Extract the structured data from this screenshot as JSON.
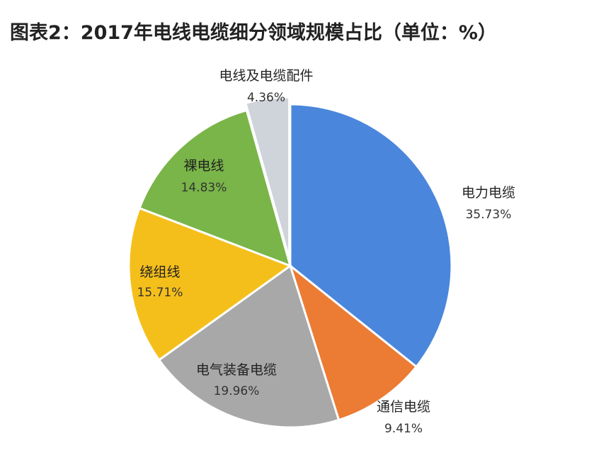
{
  "title": "图表2：2017年电线电缆细分领域规模占比（单位：%）",
  "chart_data": {
    "type": "pie",
    "title": "图表2：2017年电线电缆细分领域规模占比（单位：%）",
    "unit": "%",
    "slices": [
      {
        "label": "电力电缆",
        "value": 35.73,
        "value_text": "35.73%",
        "color": "#4A86DC"
      },
      {
        "label": "通信电缆",
        "value": 9.41,
        "value_text": "9.41%",
        "color": "#EC7B34"
      },
      {
        "label": "电气装备电缆",
        "value": 19.96,
        "value_text": "19.96%",
        "color": "#A8A8A8"
      },
      {
        "label": "绕组线",
        "value": 15.71,
        "value_text": "15.71%",
        "color": "#F5BF1B"
      },
      {
        "label": "裸电线",
        "value": 14.83,
        "value_text": "14.83%",
        "color": "#79B548"
      },
      {
        "label": "电线及电缆配件",
        "value": 4.36,
        "value_text": "4.36%",
        "color": "#CFD3DA"
      }
    ]
  }
}
